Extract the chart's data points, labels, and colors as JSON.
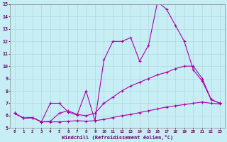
{
  "title": "",
  "xlabel": "Windchill (Refroidissement éolien,°C)",
  "ylabel": "",
  "xlim": [
    -0.5,
    23.5
  ],
  "ylim": [
    5,
    15
  ],
  "xticks": [
    0,
    1,
    2,
    3,
    4,
    5,
    6,
    7,
    8,
    9,
    10,
    11,
    12,
    13,
    14,
    15,
    16,
    17,
    18,
    19,
    20,
    21,
    22,
    23
  ],
  "yticks": [
    5,
    6,
    7,
    8,
    9,
    10,
    11,
    12,
    13,
    14,
    15
  ],
  "background_color": "#c8eef5",
  "line_color": "#aa00aa",
  "grid_color": "#b0d8dc",
  "lines": [
    {
      "x": [
        0,
        1,
        2,
        3,
        4,
        5,
        6,
        7,
        8,
        9,
        10,
        11,
        12,
        13,
        14,
        15,
        16,
        17,
        18,
        19,
        20,
        21,
        22,
        23
      ],
      "y": [
        6.2,
        5.8,
        5.85,
        5.5,
        5.5,
        5.5,
        5.55,
        5.6,
        5.55,
        5.6,
        5.7,
        5.85,
        6.0,
        6.1,
        6.25,
        6.4,
        6.55,
        6.7,
        6.8,
        6.9,
        7.0,
        7.1,
        7.0,
        6.95
      ]
    },
    {
      "x": [
        0,
        1,
        2,
        3,
        4,
        5,
        6,
        7,
        8,
        9,
        10,
        11,
        12,
        13,
        14,
        15,
        16,
        17,
        18,
        19,
        20,
        21,
        22,
        23
      ],
      "y": [
        6.2,
        5.8,
        5.85,
        5.5,
        5.55,
        6.2,
        6.4,
        6.1,
        6.0,
        6.2,
        7.0,
        7.5,
        8.0,
        8.4,
        8.7,
        9.0,
        9.3,
        9.5,
        9.8,
        10.0,
        10.0,
        9.0,
        7.3,
        7.0
      ]
    },
    {
      "x": [
        0,
        1,
        2,
        3,
        4,
        5,
        6,
        7,
        8,
        9,
        10,
        11,
        12,
        13,
        14,
        15,
        16,
        17,
        18,
        19,
        20,
        21,
        22,
        23
      ],
      "y": [
        6.2,
        5.8,
        5.85,
        5.5,
        7.0,
        7.0,
        6.3,
        6.05,
        8.0,
        5.6,
        10.5,
        12.0,
        12.0,
        12.3,
        10.4,
        11.7,
        15.2,
        14.6,
        13.3,
        12.0,
        9.7,
        8.8,
        7.3,
        7.0
      ]
    }
  ]
}
